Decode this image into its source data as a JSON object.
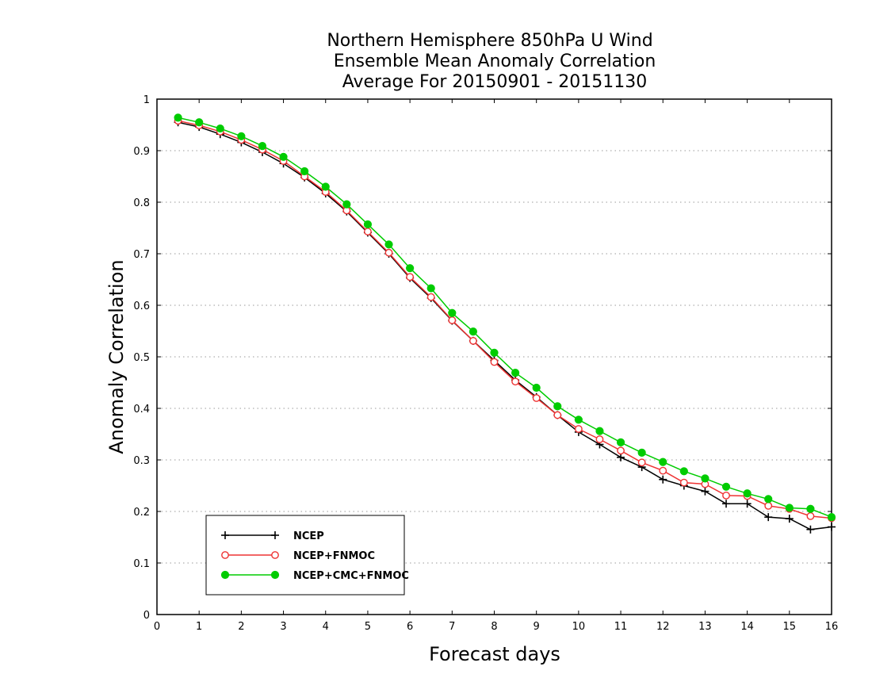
{
  "chart_data": {
    "type": "line",
    "title_lines": [
      "Northern Hemisphere 850hPa U Wind",
      "Ensemble Mean Anomaly Correlation",
      "Average For 20150901 - 20151130"
    ],
    "xlabel": "Forecast days",
    "ylabel": "Anomaly Correlation",
    "xlim": [
      0,
      16
    ],
    "ylim": [
      0,
      1
    ],
    "x_ticks": [
      "0",
      "1",
      "2",
      "3",
      "4",
      "5",
      "6",
      "7",
      "8",
      "9",
      "10",
      "11",
      "12",
      "13",
      "14",
      "15",
      "16"
    ],
    "y_ticks": [
      "0",
      "0.1",
      "0.2",
      "0.3",
      "0.4",
      "0.5",
      "0.6",
      "0.7",
      "0.8",
      "0.9",
      "1"
    ],
    "grid": "horizontal dotted",
    "legend_position": "bottom-left",
    "x": [
      0.5,
      1,
      1.5,
      2,
      2.5,
      3,
      3.5,
      4,
      4.5,
      5,
      5.5,
      6,
      6.5,
      7,
      7.5,
      8,
      8.5,
      9,
      9.5,
      10,
      10.5,
      11,
      11.5,
      12,
      12.5,
      13,
      13.5,
      14,
      14.5,
      15,
      15.5,
      16
    ],
    "series": [
      {
        "name": "NCEP",
        "color": "#000000",
        "marker": "plus",
        "values": [
          0.955,
          0.946,
          0.932,
          0.916,
          0.897,
          0.875,
          0.848,
          0.817,
          0.782,
          0.741,
          0.7,
          0.653,
          0.614,
          0.57,
          0.531,
          0.493,
          0.455,
          0.422,
          0.387,
          0.354,
          0.33,
          0.305,
          0.286,
          0.262,
          0.25,
          0.239,
          0.215,
          0.215,
          0.189,
          0.186,
          0.165,
          0.17
        ]
      },
      {
        "name": "NCEP+FNMOC",
        "color": "#ee3333",
        "marker": "open-circle",
        "values": [
          0.958,
          0.949,
          0.937,
          0.921,
          0.902,
          0.88,
          0.85,
          0.82,
          0.784,
          0.743,
          0.702,
          0.655,
          0.616,
          0.571,
          0.531,
          0.49,
          0.452,
          0.42,
          0.387,
          0.36,
          0.34,
          0.318,
          0.295,
          0.279,
          0.256,
          0.253,
          0.231,
          0.23,
          0.211,
          0.205,
          0.191,
          0.187
        ]
      },
      {
        "name": "NCEP+CMC+FNMOC",
        "color": "#00cc00",
        "marker": "filled-circle",
        "values": [
          0.964,
          0.955,
          0.943,
          0.928,
          0.909,
          0.888,
          0.86,
          0.83,
          0.796,
          0.757,
          0.718,
          0.672,
          0.633,
          0.585,
          0.549,
          0.508,
          0.469,
          0.44,
          0.404,
          0.378,
          0.356,
          0.334,
          0.314,
          0.296,
          0.278,
          0.264,
          0.248,
          0.235,
          0.224,
          0.207,
          0.205,
          0.189
        ]
      }
    ]
  }
}
